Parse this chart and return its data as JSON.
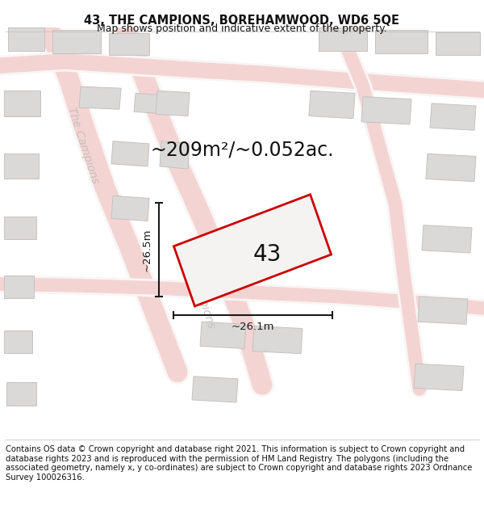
{
  "title": "43, THE CAMPIONS, BOREHAMWOOD, WD6 5QE",
  "subtitle": "Map shows position and indicative extent of the property.",
  "footer": "Contains OS data © Crown copyright and database right 2021. This information is subject to Crown copyright and database rights 2023 and is reproduced with the permission of HM Land Registry. The polygons (including the associated geometry, namely x, y co-ordinates) are subject to Crown copyright and database rights 2023 Ordnance Survey 100026316.",
  "area_label": "~209m²/~0.052ac.",
  "plot_number": "43",
  "dim_height": "~26.5m",
  "dim_width": "~26.1m",
  "map_bg": "#eeecea",
  "road_color": "#f2b8b8",
  "building_color": "#dbd9d7",
  "building_edge": "#c5c2c0",
  "plot_fill": "#f5f3f1",
  "plot_edge": "#cc0000",
  "road_text_color": "#c8c0bc",
  "dim_color": "#1a1a1a",
  "area_label_color": "#111111",
  "plot_label_color": "#111111",
  "title_fontsize": 10.5,
  "subtitle_fontsize": 9,
  "footer_fontsize": 7.2,
  "area_fontsize": 17,
  "plot_num_fontsize": 20,
  "dim_fontsize": 9.5,
  "road_label_fontsize": 10
}
